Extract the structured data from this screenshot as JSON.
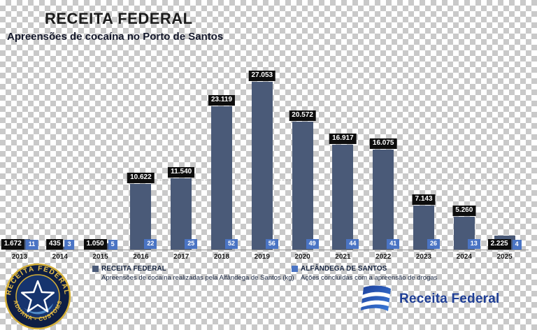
{
  "header": {
    "title": "RECEITA FEDERAL",
    "subtitle": "Apreensões de cocaína no Porto de Santos"
  },
  "chart_data": {
    "type": "bar",
    "categories": [
      "2013",
      "2014",
      "2015",
      "2016",
      "2017",
      "2018",
      "2019",
      "2020",
      "2021",
      "2022",
      "2023",
      "2024",
      "2025"
    ],
    "series": [
      {
        "name": "RECEITA FEDERAL",
        "label": "Apreensões de cocaína realizadas pela Alfândega de Santos (kg)",
        "values": [
          1672,
          435,
          1050,
          10622,
          11540,
          23119,
          27053,
          20572,
          16917,
          16075,
          7143,
          5260,
          2225
        ],
        "value_labels": [
          "1.672",
          "435",
          "1.050",
          "10.622",
          "11.540",
          "23.119",
          "27.053",
          "20.572",
          "16.917",
          "16.075",
          "7.143",
          "5.260",
          "2.225"
        ],
        "color": "#4a5a78"
      },
      {
        "name": "ALFÂNDEGA DE SANTOS",
        "label": "Ações concluídas com a apreensão de drogas",
        "values": [
          11,
          3,
          5,
          22,
          25,
          52,
          56,
          49,
          44,
          41,
          26,
          13,
          4
        ],
        "color": "#4a74c4"
      }
    ],
    "ylim": [
      0,
      28000
    ],
    "grid": "single dashed reference line",
    "legend_position": "bottom"
  },
  "legend": {
    "left": {
      "name": "RECEITA FEDERAL",
      "description": "Apreensões de cocaína realizadas pela Alfândega de Santos (kg)"
    },
    "right": {
      "name": "ALFÂNDEGA DE SANTOS",
      "description": "Ações concluídas com a apreensão de drogas"
    }
  },
  "badge": {
    "top_text": "RECEITA FEDERAL",
    "bottom_text": "ADUANA - CUSTOMS"
  },
  "logo": {
    "text": "Receita Federal"
  }
}
